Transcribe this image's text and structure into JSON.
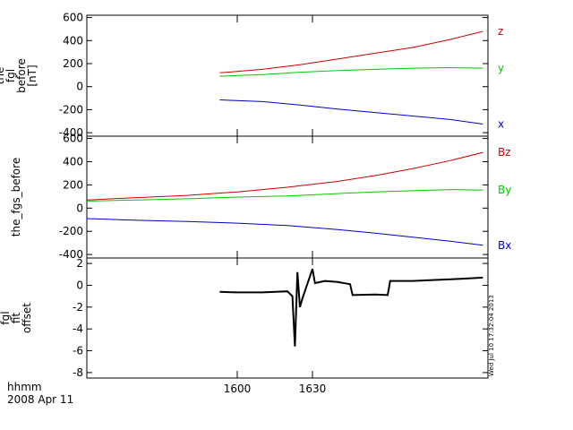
{
  "footer": {
    "x_unit": "hhmm",
    "date": "2008 Apr 11"
  },
  "timestamp": "Wed Jul 10 17:32:04 2013",
  "x_ticks": [
    "1600",
    "1630"
  ],
  "chart_data": [
    {
      "type": "line",
      "ylabel_lines": [
        "the",
        "fgl",
        "before",
        "[nT]"
      ],
      "ylim": [
        -430,
        620
      ],
      "xlim": [
        1540,
        1700
      ],
      "yticks": [
        "600",
        "400",
        "200",
        "0",
        "-200",
        "-400"
      ],
      "ytick_values": [
        600,
        400,
        200,
        0,
        -200,
        -400
      ],
      "series": [
        {
          "name": "z",
          "color": "#cc0000",
          "x": [
            1593,
            1610,
            1625,
            1640,
            1655,
            1670,
            1685,
            1698
          ],
          "values": [
            120,
            150,
            190,
            240,
            290,
            340,
            410,
            480
          ]
        },
        {
          "name": "y",
          "color": "#00cc00",
          "x": [
            1593,
            1610,
            1625,
            1640,
            1655,
            1670,
            1685,
            1698
          ],
          "values": [
            90,
            105,
            125,
            140,
            150,
            160,
            165,
            160
          ]
        },
        {
          "name": "x",
          "color": "#0000cc",
          "x": [
            1593,
            1610,
            1625,
            1640,
            1655,
            1670,
            1685,
            1698
          ],
          "values": [
            -115,
            -130,
            -160,
            -195,
            -225,
            -255,
            -285,
            -325
          ]
        }
      ]
    },
    {
      "type": "line",
      "ylabel_lines": [
        "the_fgs_before"
      ],
      "ylim": [
        -430,
        620
      ],
      "xlim": [
        1540,
        1700
      ],
      "yticks": [
        "600",
        "400",
        "200",
        "0",
        "-200",
        "-400"
      ],
      "ytick_values": [
        600,
        400,
        200,
        0,
        -200,
        -400
      ],
      "series": [
        {
          "name": "Bz",
          "color": "#cc0000",
          "x": [
            1540,
            1560,
            1580,
            1600,
            1620,
            1640,
            1655,
            1670,
            1685,
            1698
          ],
          "values": [
            70,
            90,
            110,
            140,
            180,
            230,
            280,
            340,
            410,
            480
          ]
        },
        {
          "name": "By",
          "color": "#00cc00",
          "x": [
            1540,
            1560,
            1580,
            1600,
            1620,
            1640,
            1655,
            1670,
            1685,
            1698
          ],
          "values": [
            60,
            70,
            80,
            95,
            105,
            125,
            140,
            150,
            160,
            155
          ]
        },
        {
          "name": "Bx",
          "color": "#0000cc",
          "x": [
            1540,
            1560,
            1580,
            1600,
            1620,
            1640,
            1655,
            1670,
            1685,
            1698
          ],
          "values": [
            -90,
            -105,
            -115,
            -130,
            -150,
            -185,
            -215,
            -250,
            -285,
            -320
          ]
        }
      ]
    },
    {
      "type": "line",
      "ylabel_lines": [
        "fgl",
        "fit",
        "offset"
      ],
      "ylim": [
        -8.5,
        2.5
      ],
      "xlim": [
        1540,
        1700
      ],
      "yticks": [
        "2",
        "0",
        "-2",
        "-4",
        "-6",
        "-8"
      ],
      "ytick_values": [
        2,
        0,
        -2,
        -4,
        -6,
        -8
      ],
      "series": [
        {
          "name": "",
          "color": "#000000",
          "x": [
            1593,
            1600,
            1610,
            1620,
            1622,
            1623,
            1624,
            1625,
            1626,
            1630,
            1631,
            1635,
            1640,
            1645,
            1646,
            1655,
            1660,
            1661,
            1670,
            1680,
            1690,
            1698
          ],
          "values": [
            -0.6,
            -0.65,
            -0.65,
            -0.55,
            -1.0,
            -5.6,
            1.2,
            -2.0,
            -1.2,
            1.5,
            0.2,
            0.4,
            0.3,
            0.1,
            -0.9,
            -0.85,
            -0.9,
            0.4,
            0.4,
            0.5,
            0.6,
            0.7
          ]
        }
      ]
    }
  ]
}
